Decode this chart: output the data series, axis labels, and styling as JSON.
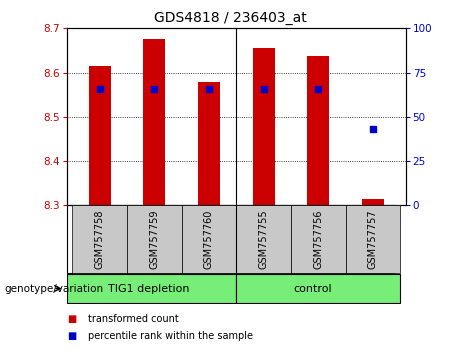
{
  "title": "GDS4818 / 236403_at",
  "samples": [
    "GSM757758",
    "GSM757759",
    "GSM757760",
    "GSM757755",
    "GSM757756",
    "GSM757757"
  ],
  "group_labels": [
    "TIG1 depletion",
    "control"
  ],
  "bar_bottom": 8.3,
  "transformed_counts": [
    8.614,
    8.675,
    8.578,
    8.655,
    8.638,
    8.315
  ],
  "percentile_ranks": [
    66,
    66,
    66,
    66,
    66,
    43
  ],
  "ylim_left": [
    8.3,
    8.7
  ],
  "ylim_right": [
    0,
    100
  ],
  "yticks_left": [
    8.3,
    8.4,
    8.5,
    8.6,
    8.7
  ],
  "yticks_right": [
    0,
    25,
    50,
    75,
    100
  ],
  "bar_color": "#cc0000",
  "percentile_color": "#0000cc",
  "bar_width": 0.4,
  "plot_bg_color": "#ffffff",
  "label_color_left": "#cc0000",
  "label_color_right": "#0000cc",
  "xlabel": "genotype/variation",
  "legend_items": [
    "transformed count",
    "percentile rank within the sample"
  ],
  "legend_colors": [
    "#cc0000",
    "#0000cc"
  ],
  "tick_label_bg": "#c8c8c8",
  "group_color": "#77ee77",
  "title_fontsize": 10,
  "tick_fontsize": 7.5,
  "label_fontsize": 7,
  "group_fontsize": 8
}
